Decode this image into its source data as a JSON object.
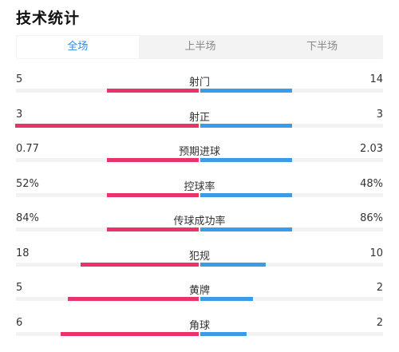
{
  "title": "技术统计",
  "tabs": [
    {
      "label": "全场",
      "active": true
    },
    {
      "label": "上半场",
      "active": false
    },
    {
      "label": "下半场",
      "active": false
    }
  ],
  "colors": {
    "home": "#e8336b",
    "away": "#3a9be8",
    "tab_active": "#2e8ae6"
  },
  "stats": [
    {
      "label": "射门",
      "left": "5",
      "right": "14",
      "left_value": 5,
      "right_value": 14,
      "left_max": 10,
      "right_max": 28
    },
    {
      "label": "射正",
      "left": "3",
      "right": "3",
      "left_value": 3,
      "right_value": 3,
      "left_max": 3,
      "right_max": 6
    },
    {
      "label": "预期进球",
      "left": "0.77",
      "right": "2.03",
      "left_value": 0.77,
      "right_value": 2.03,
      "left_max": 1.54,
      "right_max": 4.06
    },
    {
      "label": "控球率",
      "left": "52%",
      "right": "48%",
      "left_value": 52,
      "right_value": 48,
      "left_max": 104,
      "right_max": 96
    },
    {
      "label": "传球成功率",
      "left": "84%",
      "right": "86%",
      "left_value": 84,
      "right_value": 86,
      "left_max": 168,
      "right_max": 172
    },
    {
      "label": "犯规",
      "left": "18",
      "right": "10",
      "left_value": 18,
      "right_value": 10,
      "left_max": 28,
      "right_max": 28
    },
    {
      "label": "黄牌",
      "left": "5",
      "right": "2",
      "left_value": 5,
      "right_value": 2,
      "left_max": 7,
      "right_max": 7
    },
    {
      "label": "角球",
      "left": "6",
      "right": "2",
      "left_value": 6,
      "right_value": 2,
      "left_max": 8,
      "right_max": 8
    }
  ]
}
